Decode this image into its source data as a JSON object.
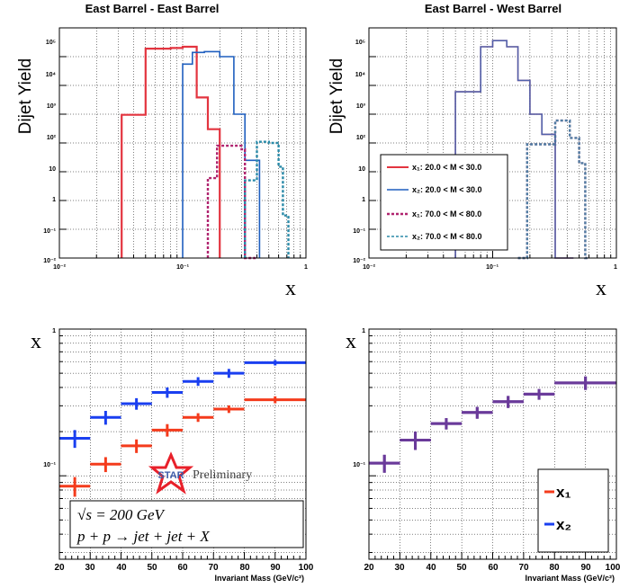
{
  "colors": {
    "red": "#e3343f",
    "blue": "#1f5fbf",
    "magenta": "#b0246f",
    "teal": "#2a8aa8",
    "purple": "#6a3a9a",
    "orange_red": "#f43b1c",
    "bright_blue": "#1a3ff0",
    "star_red": "#e8202a",
    "star_text": "#3b5aa8"
  },
  "star_logo": {
    "text": "STAR",
    "preliminary": "Preliminary"
  },
  "equation_box": {
    "line1": "√s = 200 GeV",
    "line2": "p + p → jet + jet + X"
  },
  "chart_data": [
    {
      "id": "top-left",
      "type": "line",
      "subtype": "histogram",
      "title": "East Barrel - East Barrel",
      "ylabel": "Dijet Yield",
      "xlabel": "x",
      "xscale": "log",
      "yscale": "log",
      "xlim": [
        0.01,
        1
      ],
      "ylim": [
        0.01,
        1000000
      ],
      "grid": true,
      "x_tick_labels": [
        "10⁻²",
        "10⁻¹",
        "1"
      ],
      "y_tick_labels": [
        "10⁻²",
        "10⁻¹",
        "1",
        "10",
        "10²",
        "10³",
        "10⁴",
        "10⁵"
      ],
      "series": [
        {
          "color": "#e3343f",
          "style": "solid",
          "edges": [
            0.032,
            0.05,
            0.08,
            0.1,
            0.13,
            0.16,
            0.2
          ],
          "values": [
            950,
            190000,
            200000,
            220000,
            3800,
            300
          ]
        },
        {
          "color": "#1f5fbf",
          "style": "solid",
          "edges": [
            0.1,
            0.12,
            0.15,
            0.2,
            0.26,
            0.32,
            0.42
          ],
          "values": [
            55000,
            140000,
            150000,
            100000,
            1000,
            25
          ]
        },
        {
          "color": "#b0246f",
          "style": "dashed",
          "edges": [
            0.16,
            0.19,
            0.3,
            0.32,
            0.4
          ],
          "values": [
            6,
            80,
            60,
            0.01
          ]
        },
        {
          "color": "#2a8aa8",
          "style": "dashed",
          "edges": [
            0.32,
            0.4,
            0.5,
            0.6,
            0.65,
            0.72
          ],
          "values": [
            5,
            110,
            100,
            15,
            0.3
          ]
        }
      ]
    },
    {
      "id": "top-right",
      "type": "line",
      "subtype": "histogram",
      "title": "East Barrel - West Barrel",
      "ylabel": "Dijet Yield",
      "xlabel": "x",
      "xscale": "log",
      "yscale": "log",
      "xlim": [
        0.01,
        1
      ],
      "ylim": [
        0.01,
        1000000
      ],
      "grid": true,
      "legend": "center-left",
      "x_tick_labels": [
        "10⁻²",
        "10⁻¹",
        "1"
      ],
      "y_tick_labels": [
        "10⁻²",
        "10⁻¹",
        "1",
        "10",
        "10²",
        "10³",
        "10⁴",
        "10⁵"
      ],
      "series": [
        {
          "name": "x₁: 20.0 < M < 30.0",
          "color": "#e3343f",
          "style": "solid",
          "edges": [
            0.05,
            0.08,
            0.1,
            0.13,
            0.16,
            0.2,
            0.25,
            0.32,
            0.45
          ],
          "values": [
            6000,
            220000,
            360000,
            220000,
            15000,
            1000,
            200,
            0.01
          ]
        },
        {
          "name": "x₂: 20.0 < M < 30.0",
          "color": "#1f5fbf",
          "style": "solid",
          "edges": [
            0.05,
            0.08,
            0.1,
            0.13,
            0.16,
            0.2,
            0.25,
            0.32,
            0.45
          ],
          "values": [
            6000,
            220000,
            360000,
            220000,
            15000,
            1000,
            200,
            0.01
          ]
        },
        {
          "name": "x₁: 70.0 < M < 80.0",
          "color": "#b0246f",
          "style": "dashed",
          "edges": [
            0.16,
            0.19,
            0.32,
            0.42,
            0.5,
            0.56,
            0.6
          ],
          "values": [
            0.01,
            90,
            600,
            150,
            20,
            0.01
          ]
        },
        {
          "name": "x₂: 70.0 < M < 80.0",
          "color": "#2a8aa8",
          "style": "dashed",
          "edges": [
            0.16,
            0.19,
            0.32,
            0.42,
            0.5,
            0.56,
            0.6
          ],
          "values": [
            0.01,
            90,
            600,
            150,
            20,
            0.01
          ]
        }
      ]
    },
    {
      "id": "bottom-left",
      "type": "scatter",
      "subtype": "errorbars",
      "ylabel": "x",
      "xlabel": "Invariant Mass (GeV/c²)",
      "xscale": "linear",
      "yscale": "log",
      "xlim": [
        20,
        100
      ],
      "ylim": [
        0.027,
        1
      ],
      "grid": true,
      "x_tick_labels": [
        "20",
        "30",
        "40",
        "50",
        "60",
        "70",
        "80",
        "90",
        "100"
      ],
      "y_tick_labels": [
        "10⁻¹",
        "1"
      ],
      "series": [
        {
          "color": "#f43b1c",
          "x": [
            25,
            35,
            45,
            55,
            65,
            75,
            90
          ],
          "xerr": [
            5,
            5,
            5,
            5,
            5,
            5,
            10
          ],
          "y": [
            0.085,
            0.12,
            0.16,
            0.205,
            0.25,
            0.285,
            0.33
          ],
          "yerr": [
            0.013,
            0.014,
            0.017,
            0.02,
            0.017,
            0.017,
            0.018
          ]
        },
        {
          "color": "#1a3ff0",
          "x": [
            25,
            35,
            45,
            55,
            65,
            75,
            90
          ],
          "xerr": [
            5,
            5,
            5,
            5,
            5,
            5,
            10
          ],
          "y": [
            0.18,
            0.25,
            0.31,
            0.37,
            0.44,
            0.5,
            0.59
          ],
          "yerr": [
            0.025,
            0.027,
            0.028,
            0.03,
            0.03,
            0.035,
            0.025
          ]
        }
      ]
    },
    {
      "id": "bottom-right",
      "type": "scatter",
      "subtype": "errorbars",
      "ylabel": "x",
      "xlabel": "Invariant Mass (GeV/c²)",
      "xscale": "linear",
      "yscale": "log",
      "xlim": [
        20,
        100
      ],
      "ylim": [
        0.027,
        1
      ],
      "grid": true,
      "legend": "bottom-right",
      "x_tick_labels": [
        "20",
        "30",
        "40",
        "50",
        "60",
        "70",
        "80",
        "90",
        "100"
      ],
      "y_tick_labels": [
        "10⁻¹",
        "1"
      ],
      "series": [
        {
          "name": "x₁",
          "color": "#f43b1c",
          "x": [
            25,
            35,
            45,
            55,
            65,
            75,
            90
          ],
          "xerr": [
            5,
            5,
            5,
            5,
            5,
            5,
            10
          ],
          "y": [
            0.122,
            0.175,
            0.227,
            0.27,
            0.32,
            0.36,
            0.43
          ],
          "yerr": [
            0.017,
            0.025,
            0.02,
            0.025,
            0.03,
            0.03,
            0.045
          ]
        },
        {
          "name": "x₂",
          "color": "#1a3ff0",
          "x": [
            25,
            35,
            45,
            55,
            65,
            75,
            90
          ],
          "xerr": [
            5,
            5,
            5,
            5,
            5,
            5,
            10
          ],
          "y": [
            0.122,
            0.175,
            0.227,
            0.27,
            0.32,
            0.36,
            0.43
          ],
          "yerr": [
            0.017,
            0.025,
            0.02,
            0.025,
            0.03,
            0.03,
            0.045
          ]
        }
      ]
    }
  ]
}
